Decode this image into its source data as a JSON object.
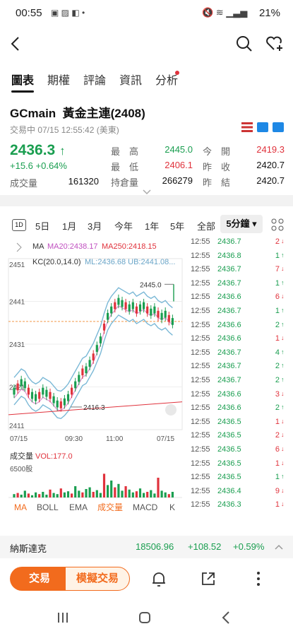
{
  "status_bar": {
    "time": "00:55",
    "battery": "21%"
  },
  "tabs": [
    {
      "label": "圖表"
    },
    {
      "label": "期權"
    },
    {
      "label": "評論"
    },
    {
      "label": "資訊"
    },
    {
      "label": "分析"
    }
  ],
  "instrument": {
    "symbol": "GCmain",
    "name": "黃金主連(2408)",
    "status_time": "交易中  07/15 12:55:42 (美東)",
    "price": "2436.3",
    "change": "+15.6  +0.64%",
    "volume_label": "成交量",
    "volume": "161320"
  },
  "quote_grid": [
    {
      "label": "最　高",
      "value": "2445.0",
      "color": "#1a9e50"
    },
    {
      "label": "今　開",
      "value": "2419.3",
      "color": "#e0323c"
    },
    {
      "label": "最　低",
      "value": "2406.1",
      "color": "#e0323c"
    },
    {
      "label": "昨　收",
      "value": "2420.7",
      "color": "#111111"
    },
    {
      "label": "持倉量",
      "value": "266279",
      "color": "#111111"
    },
    {
      "label": "昨　結",
      "value": "2420.7",
      "color": "#111111"
    }
  ],
  "periods": [
    "1D",
    "5日",
    "1月",
    "3月",
    "今年",
    "1年",
    "5年",
    "全部"
  ],
  "period_selected": "5分鐘",
  "chart": {
    "ma_title": "MA",
    "ma20": "MA20:2438.17",
    "ma250": "MA250:2418.15",
    "kc_title": "KC(20.0,14.0)",
    "kc_vals": "ML:2436.68 UB:2441.08...",
    "y_labels": [
      "2451",
      "2441",
      "2431",
      "2421",
      "2411"
    ],
    "x_labels": [
      "07/15",
      "09:30",
      "11:00",
      "07/15"
    ],
    "max_label": "2445.0",
    "min_label": "2416.3",
    "vol_title": "成交量",
    "vol_val": "VOL:177.0",
    "vol_scale": "6500股",
    "indicator_tabs": [
      "MA",
      "BOLL",
      "EMA",
      "成交量",
      "MACD",
      "K"
    ]
  },
  "chart_data": {
    "type": "candlestick",
    "x": [
      "07/15",
      "09:30",
      "11:00",
      "07/15"
    ],
    "ylim": [
      2411,
      2451
    ],
    "y_ticks": [
      2411,
      2421,
      2431,
      2441,
      2451
    ],
    "max": 2445.0,
    "min": 2416.3,
    "close": 2436.3
  },
  "ticks": [
    {
      "time": "12:55",
      "price": "2436.7",
      "qty": "2",
      "dir": "down"
    },
    {
      "time": "12:55",
      "price": "2436.8",
      "qty": "1",
      "dir": "up"
    },
    {
      "time": "12:55",
      "price": "2436.7",
      "qty": "7",
      "dir": "down"
    },
    {
      "time": "12:55",
      "price": "2436.7",
      "qty": "1",
      "dir": "up"
    },
    {
      "time": "12:55",
      "price": "2436.6",
      "qty": "6",
      "dir": "down"
    },
    {
      "time": "12:55",
      "price": "2436.7",
      "qty": "1",
      "dir": "up"
    },
    {
      "time": "12:55",
      "price": "2436.6",
      "qty": "2",
      "dir": "up"
    },
    {
      "time": "12:55",
      "price": "2436.6",
      "qty": "1",
      "dir": "down"
    },
    {
      "time": "12:55",
      "price": "2436.7",
      "qty": "4",
      "dir": "up"
    },
    {
      "time": "12:55",
      "price": "2436.7",
      "qty": "2",
      "dir": "up"
    },
    {
      "time": "12:55",
      "price": "2436.7",
      "qty": "2",
      "dir": "up"
    },
    {
      "time": "12:55",
      "price": "2436.6",
      "qty": "3",
      "dir": "down"
    },
    {
      "time": "12:55",
      "price": "2436.6",
      "qty": "2",
      "dir": "up"
    },
    {
      "time": "12:55",
      "price": "2436.5",
      "qty": "1",
      "dir": "down"
    },
    {
      "time": "12:55",
      "price": "2436.5",
      "qty": "2",
      "dir": "down"
    },
    {
      "time": "12:55",
      "price": "2436.5",
      "qty": "6",
      "dir": "down"
    },
    {
      "time": "12:55",
      "price": "2436.5",
      "qty": "1",
      "dir": "down"
    },
    {
      "time": "12:55",
      "price": "2436.5",
      "qty": "1",
      "dir": "up"
    },
    {
      "time": "12:55",
      "price": "2436.4",
      "qty": "9",
      "dir": "down"
    },
    {
      "time": "12:55",
      "price": "2436.3",
      "qty": "1",
      "dir": "down"
    }
  ],
  "nasdaq": {
    "name": "納斯達克",
    "price": "18506.96",
    "change": "+108.52",
    "pct": "+0.59%"
  },
  "actions": {
    "trade": "交易",
    "sim": "模擬交易"
  },
  "colors": {
    "green": "#1a9e50",
    "red": "#e0323c",
    "accent": "#f26b1d"
  }
}
